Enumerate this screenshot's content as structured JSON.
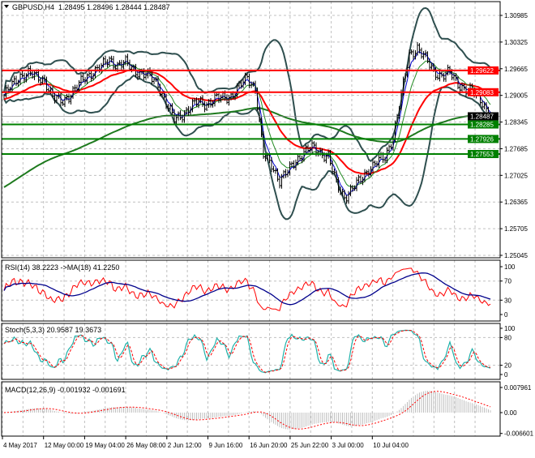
{
  "header": {
    "symbol": "GBPUSD,H4",
    "ohlc": "1.28495 1.28496 1.28444 1.28487"
  },
  "colors": {
    "resistance": "#ff0000",
    "support": "#008000",
    "current_price_label": "#000000",
    "bollinger": "#2f4f4f",
    "ma_slow": "#ff0000",
    "ma_long": "#1e7a1e",
    "rsi": "#ff0000",
    "rsi_ma": "#00008b",
    "stoch_main": "#20b2aa",
    "stoch_signal": "#ff0000",
    "macd_hist": "#c0c0c0",
    "macd_signal": "#ff0000"
  },
  "chart_data": [
    {
      "type": "candlestick",
      "title": "GBPUSD,H4",
      "ylim": [
        1.25045,
        1.30985
      ],
      "y_ticks": [
        "1.30985",
        "1.30325",
        "1.29665",
        "1.29005",
        "1.28345",
        "1.27685",
        "1.27025",
        "1.26365",
        "1.25705",
        "1.25045"
      ],
      "x_ticks": [
        "4 May 2017",
        "12 May 00:00",
        "19 May 04:00",
        "26 May 08:00",
        "2 Jun 12:00",
        "9 Jun 16:00",
        "16 Jun 20:00",
        "25 Jun 22:00",
        "3 Jul 00:00",
        "10 Jul 04:00"
      ],
      "grid": true,
      "close_approx": [
        1.29,
        1.2925,
        1.295,
        1.2955,
        1.2945,
        1.294,
        1.2895,
        1.2885,
        1.29,
        1.292,
        1.2945,
        1.296,
        1.297,
        1.299,
        1.2975,
        1.298,
        1.2965,
        1.2955,
        1.2945,
        1.293,
        1.288,
        1.284,
        1.2855,
        1.287,
        1.2885,
        1.288,
        1.289,
        1.2895,
        1.29,
        1.292,
        1.2945,
        1.292,
        1.275,
        1.273,
        1.269,
        1.271,
        1.274,
        1.276,
        1.277,
        1.276,
        1.275,
        1.268,
        1.265,
        1.267,
        1.269,
        1.272,
        1.2735,
        1.2745,
        1.28,
        1.29,
        1.3,
        1.302,
        1.299,
        1.296,
        1.295,
        1.2955,
        1.293,
        1.2915,
        1.2905,
        1.2885,
        1.2849
      ],
      "levels": [
        {
          "label": "1.29622",
          "value": 1.29622,
          "kind": "resistance"
        },
        {
          "label": "1.29083",
          "value": 1.29083,
          "kind": "resistance"
        },
        {
          "label": "1.28285",
          "value": 1.28285,
          "kind": "support"
        },
        {
          "label": "1.27926",
          "value": 1.27926,
          "kind": "support"
        },
        {
          "label": "1.27553",
          "value": 1.27553,
          "kind": "support"
        }
      ],
      "current_price": {
        "label": "1.28487",
        "value": 1.28487
      }
    },
    {
      "type": "line",
      "title": "RSI(14) 38.2223  ->MA(18) 41.2250",
      "ylim": [
        0,
        100
      ],
      "y_ticks": [
        "100",
        "70",
        "30",
        "0"
      ]
    },
    {
      "type": "line",
      "title": "Stoch(5,3,3) 20.9587 19.3673",
      "ylim": [
        0,
        100
      ],
      "y_ticks": [
        "100",
        "80",
        "20",
        "0"
      ]
    },
    {
      "type": "bar",
      "title": "MACD(12,26,9) -0.001932 -0.001691",
      "ylim": [
        -0.006601,
        0.007961
      ],
      "y_ticks": [
        "0.007961",
        "0.00",
        "-0.006601"
      ]
    }
  ]
}
